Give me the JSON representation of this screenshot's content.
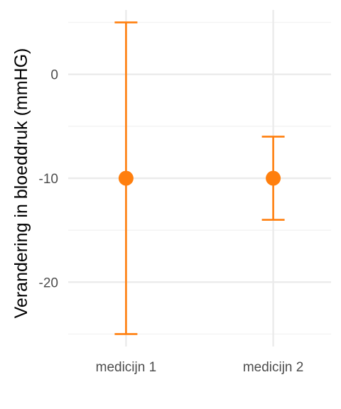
{
  "chart_data": {
    "type": "scatter",
    "title": "",
    "xlabel": "",
    "ylabel": "Verandering in bloeddruk (mmHG)",
    "categories": [
      "medicijn 1",
      "medicijn 2"
    ],
    "series": [
      {
        "values": [
          -10,
          -10
        ],
        "error_low": [
          -25,
          -14
        ],
        "error_high": [
          5,
          -6
        ]
      }
    ],
    "ylim": [
      -26.2,
      6.2
    ],
    "yticks": [
      0,
      -10,
      -20
    ],
    "ytick_labels": [
      "0",
      "-10",
      "-20"
    ],
    "grid": true,
    "colors": {
      "series": "#ff7f0e",
      "grid_major": "#ebebeb",
      "grid_minor": "#f3f3f3",
      "background": "#ffffff"
    }
  }
}
